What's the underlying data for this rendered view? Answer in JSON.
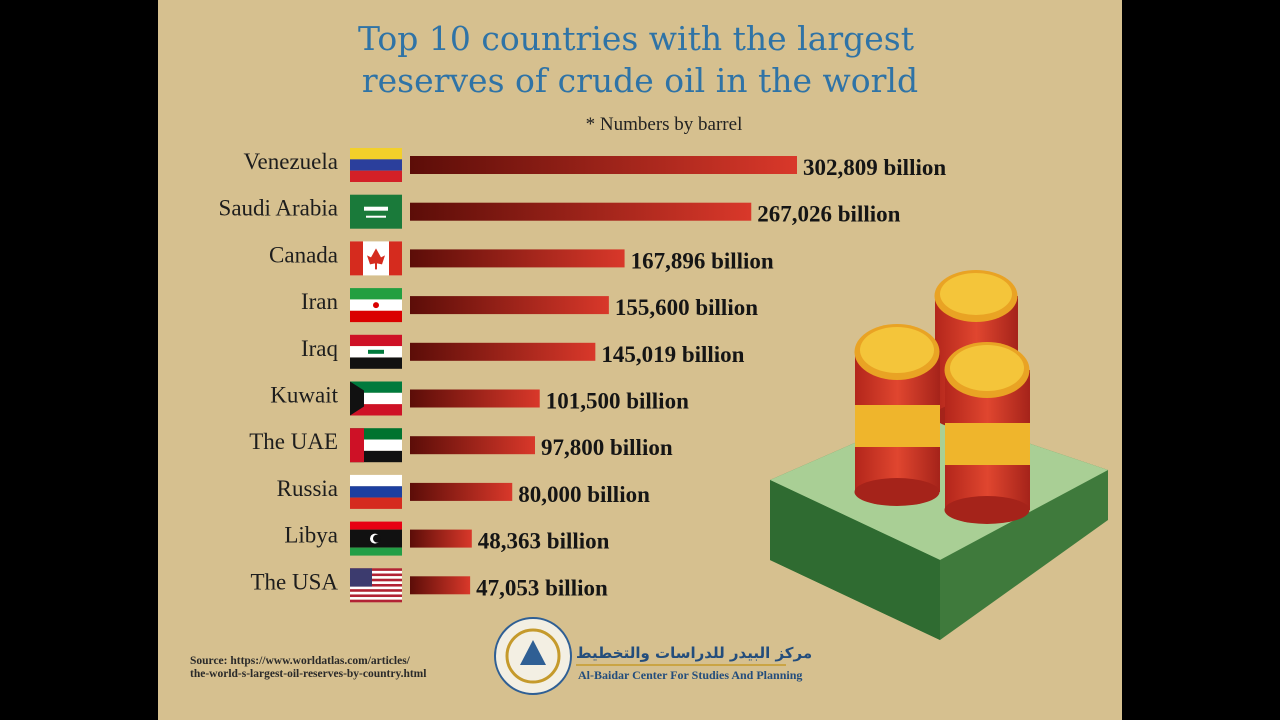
{
  "chart_data": {
    "type": "bar",
    "title": [
      "Top 10 countries with the largest",
      "reserves of crude oil in the world"
    ],
    "subtitle": "* Numbers by barrel",
    "categories": [
      "Venezuela",
      "Saudi Arabia",
      "Canada",
      "Iran",
      "Iraq",
      "Kuwait",
      "The UAE",
      "Russia",
      "Libya",
      "The USA"
    ],
    "values": [
      302809,
      267026,
      167896,
      155600,
      145019,
      101500,
      97800,
      80000,
      48363,
      47053
    ],
    "value_labels": [
      "302,809 billion",
      "267,026 billion",
      "167,896 billion",
      "155,600 billion",
      "145,019 billion",
      "101,500 billion",
      "97,800 billion",
      "80,000 billion",
      "48,363 billion",
      "47,053 billion"
    ],
    "color": "#d9382a"
  },
  "footer": {
    "source": [
      "Source: https://www.worldatlas.com/articles/",
      "the-world-s-largest-oil-reserves-by-country.html"
    ],
    "logo_arabic": "مركز البيدر للدراسات والتخطيط",
    "logo_english": "Al-Baidar Center For Studies And Planning"
  }
}
